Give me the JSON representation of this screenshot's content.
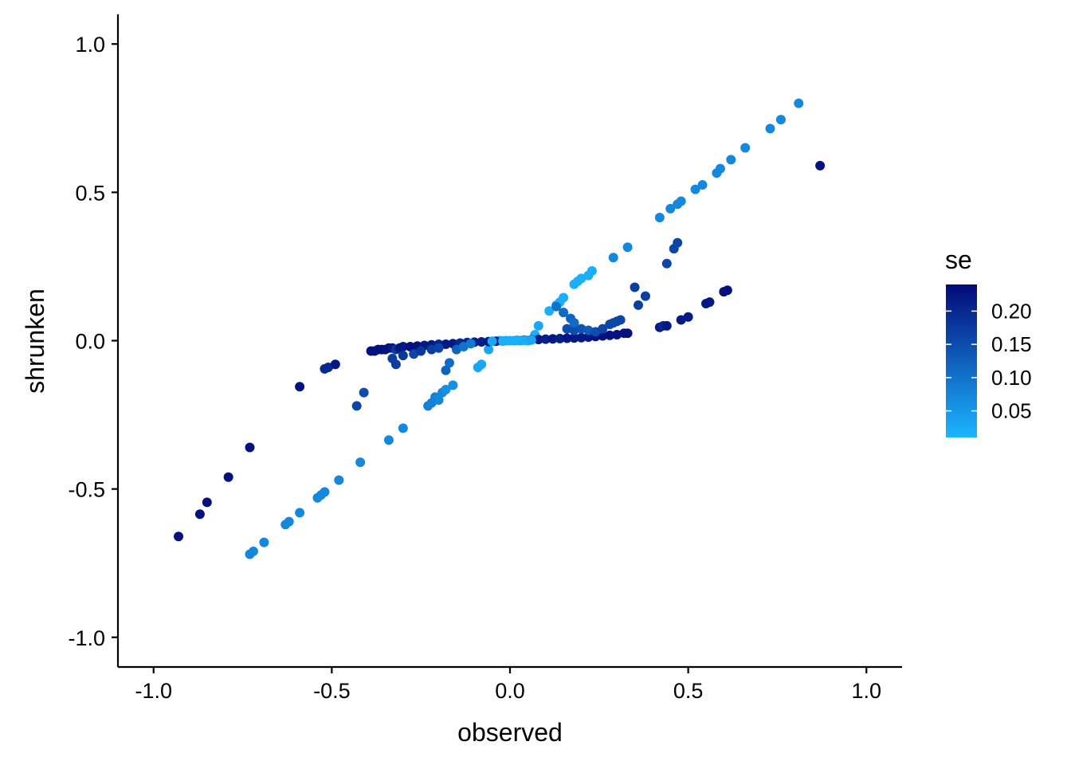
{
  "chart_data": {
    "type": "scatter",
    "title": "",
    "xlabel": "observed",
    "ylabel": "shrunken",
    "xlim": [
      -1.1,
      1.1
    ],
    "ylim": [
      -1.1,
      1.1
    ],
    "x_ticks": [
      -1.0,
      -0.5,
      0.0,
      0.5,
      1.0
    ],
    "y_ticks": [
      -1.0,
      -0.5,
      0.0,
      0.5,
      1.0
    ],
    "x_tick_labels": [
      "-1.0",
      "-0.5",
      "0.0",
      "0.5",
      "1.0"
    ],
    "y_tick_labels": [
      "-1.0",
      "-0.5",
      "0.0",
      "0.5",
      "1.0"
    ],
    "grid": false,
    "color_scale": {
      "variable": "se",
      "title": "se",
      "range": [
        0.01,
        0.24
      ],
      "low_color": "#1cb5ff",
      "high_color": "#030a78",
      "ticks": [
        0.05,
        0.1,
        0.15,
        0.2
      ],
      "tick_labels": [
        "0.05",
        "0.10",
        "0.15",
        "0.20"
      ],
      "placement": "right"
    },
    "series": [
      {
        "points": [
          {
            "x": -0.73,
            "y": -0.72,
            "se": 0.07
          },
          {
            "x": -0.72,
            "y": -0.71,
            "se": 0.07
          },
          {
            "x": -0.69,
            "y": -0.68,
            "se": 0.07
          },
          {
            "x": -0.63,
            "y": -0.62,
            "se": 0.07
          },
          {
            "x": -0.62,
            "y": -0.61,
            "se": 0.07
          },
          {
            "x": -0.59,
            "y": -0.58,
            "se": 0.07
          },
          {
            "x": -0.54,
            "y": -0.53,
            "se": 0.07
          },
          {
            "x": -0.53,
            "y": -0.52,
            "se": 0.07
          },
          {
            "x": -0.52,
            "y": -0.51,
            "se": 0.07
          },
          {
            "x": -0.48,
            "y": -0.47,
            "se": 0.07
          },
          {
            "x": -0.42,
            "y": -0.41,
            "se": 0.07
          },
          {
            "x": -0.34,
            "y": -0.335,
            "se": 0.07
          },
          {
            "x": -0.3,
            "y": -0.295,
            "se": 0.07
          },
          {
            "x": -0.23,
            "y": -0.22,
            "se": 0.08
          },
          {
            "x": -0.22,
            "y": -0.21,
            "se": 0.08
          },
          {
            "x": -0.21,
            "y": -0.19,
            "se": 0.08
          },
          {
            "x": -0.2,
            "y": -0.2,
            "se": 0.07
          },
          {
            "x": -0.19,
            "y": -0.175,
            "se": 0.07
          },
          {
            "x": -0.18,
            "y": -0.165,
            "se": 0.06
          },
          {
            "x": -0.16,
            "y": -0.15,
            "se": 0.06
          },
          {
            "x": -0.09,
            "y": -0.09,
            "se": 0.03
          },
          {
            "x": -0.08,
            "y": -0.08,
            "se": 0.03
          },
          {
            "x": -0.06,
            "y": -0.03,
            "se": 0.03
          },
          {
            "x": -0.03,
            "y": 0.0,
            "se": 0.02
          },
          {
            "x": -0.01,
            "y": 0.0,
            "se": 0.02
          },
          {
            "x": 0.01,
            "y": 0.0,
            "se": 0.02
          },
          {
            "x": 0.03,
            "y": 0.0,
            "se": 0.02
          },
          {
            "x": 0.05,
            "y": 0.0,
            "se": 0.02
          },
          {
            "x": 0.07,
            "y": 0.02,
            "se": 0.02
          },
          {
            "x": 0.08,
            "y": 0.05,
            "se": 0.03
          },
          {
            "x": 0.11,
            "y": 0.1,
            "se": 0.02
          },
          {
            "x": 0.13,
            "y": 0.12,
            "se": 0.02
          },
          {
            "x": 0.14,
            "y": 0.13,
            "se": 0.02
          },
          {
            "x": 0.15,
            "y": 0.145,
            "se": 0.02
          },
          {
            "x": 0.18,
            "y": 0.19,
            "se": 0.02
          },
          {
            "x": 0.19,
            "y": 0.2,
            "se": 0.02
          },
          {
            "x": 0.2,
            "y": 0.21,
            "se": 0.02
          },
          {
            "x": 0.22,
            "y": 0.22,
            "se": 0.02
          },
          {
            "x": 0.23,
            "y": 0.235,
            "se": 0.02
          },
          {
            "x": 0.29,
            "y": 0.28,
            "se": 0.07
          },
          {
            "x": 0.33,
            "y": 0.315,
            "se": 0.07
          },
          {
            "x": 0.42,
            "y": 0.415,
            "se": 0.07
          },
          {
            "x": 0.45,
            "y": 0.445,
            "se": 0.07
          },
          {
            "x": 0.47,
            "y": 0.46,
            "se": 0.07
          },
          {
            "x": 0.48,
            "y": 0.47,
            "se": 0.07
          },
          {
            "x": 0.52,
            "y": 0.51,
            "se": 0.07
          },
          {
            "x": 0.54,
            "y": 0.525,
            "se": 0.07
          },
          {
            "x": 0.58,
            "y": 0.565,
            "se": 0.07
          },
          {
            "x": 0.59,
            "y": 0.58,
            "se": 0.07
          },
          {
            "x": 0.62,
            "y": 0.61,
            "se": 0.07
          },
          {
            "x": 0.66,
            "y": 0.65,
            "se": 0.07
          },
          {
            "x": 0.73,
            "y": 0.715,
            "se": 0.07
          },
          {
            "x": 0.76,
            "y": 0.745,
            "se": 0.07
          },
          {
            "x": 0.81,
            "y": 0.8,
            "se": 0.07
          },
          {
            "x": 0.87,
            "y": 0.59,
            "se": 0.23
          },
          {
            "x": -0.93,
            "y": -0.66,
            "se": 0.23
          },
          {
            "x": -0.87,
            "y": -0.585,
            "se": 0.23
          },
          {
            "x": -0.85,
            "y": -0.545,
            "se": 0.23
          },
          {
            "x": -0.79,
            "y": -0.46,
            "se": 0.23
          },
          {
            "x": -0.73,
            "y": -0.36,
            "se": 0.23
          },
          {
            "x": -0.59,
            "y": -0.155,
            "se": 0.23
          },
          {
            "x": -0.52,
            "y": -0.095,
            "se": 0.2
          },
          {
            "x": -0.51,
            "y": -0.09,
            "se": 0.2
          },
          {
            "x": -0.49,
            "y": -0.08,
            "se": 0.22
          },
          {
            "x": -0.43,
            "y": -0.22,
            "se": 0.16
          },
          {
            "x": -0.41,
            "y": -0.175,
            "se": 0.15
          },
          {
            "x": -0.39,
            "y": -0.035,
            "se": 0.23
          },
          {
            "x": -0.38,
            "y": -0.035,
            "se": 0.23
          },
          {
            "x": -0.37,
            "y": -0.03,
            "se": 0.23
          },
          {
            "x": -0.36,
            "y": -0.03,
            "se": 0.23
          },
          {
            "x": -0.35,
            "y": -0.03,
            "se": 0.23
          },
          {
            "x": -0.34,
            "y": -0.025,
            "se": 0.23
          },
          {
            "x": -0.33,
            "y": -0.025,
            "se": 0.22
          },
          {
            "x": -0.32,
            "y": -0.03,
            "se": 0.18
          },
          {
            "x": -0.31,
            "y": -0.025,
            "se": 0.22
          },
          {
            "x": -0.3,
            "y": -0.02,
            "se": 0.22
          },
          {
            "x": -0.28,
            "y": -0.02,
            "se": 0.23
          },
          {
            "x": -0.26,
            "y": -0.018,
            "se": 0.23
          },
          {
            "x": -0.24,
            "y": -0.016,
            "se": 0.22
          },
          {
            "x": -0.22,
            "y": -0.014,
            "se": 0.22
          },
          {
            "x": -0.2,
            "y": -0.012,
            "se": 0.2
          },
          {
            "x": -0.18,
            "y": -0.012,
            "se": 0.22
          },
          {
            "x": -0.16,
            "y": -0.01,
            "se": 0.22
          },
          {
            "x": -0.14,
            "y": -0.008,
            "se": 0.2
          },
          {
            "x": -0.12,
            "y": -0.006,
            "se": 0.2
          },
          {
            "x": -0.1,
            "y": -0.005,
            "se": 0.21
          },
          {
            "x": -0.08,
            "y": -0.004,
            "se": 0.21
          },
          {
            "x": -0.06,
            "y": -0.003,
            "se": 0.22
          },
          {
            "x": -0.04,
            "y": -0.002,
            "se": 0.22
          },
          {
            "x": -0.02,
            "y": -0.001,
            "se": 0.22
          },
          {
            "x": -0.33,
            "y": -0.06,
            "se": 0.17
          },
          {
            "x": -0.32,
            "y": -0.08,
            "se": 0.17
          },
          {
            "x": -0.3,
            "y": -0.05,
            "se": 0.18
          },
          {
            "x": -0.27,
            "y": -0.045,
            "se": 0.16
          },
          {
            "x": -0.25,
            "y": -0.035,
            "se": 0.18
          },
          {
            "x": -0.22,
            "y": -0.03,
            "se": 0.17
          },
          {
            "x": -0.2,
            "y": -0.025,
            "se": 0.16
          },
          {
            "x": -0.18,
            "y": -0.1,
            "se": 0.12
          },
          {
            "x": -0.17,
            "y": -0.075,
            "se": 0.11
          },
          {
            "x": -0.15,
            "y": -0.03,
            "se": 0.12
          },
          {
            "x": -0.13,
            "y": -0.02,
            "se": 0.1
          },
          {
            "x": -0.11,
            "y": -0.01,
            "se": 0.09
          },
          {
            "x": 0.02,
            "y": 0.001,
            "se": 0.22
          },
          {
            "x": 0.04,
            "y": 0.002,
            "se": 0.22
          },
          {
            "x": 0.06,
            "y": 0.003,
            "se": 0.22
          },
          {
            "x": 0.08,
            "y": 0.004,
            "se": 0.22
          },
          {
            "x": 0.1,
            "y": 0.005,
            "se": 0.21
          },
          {
            "x": 0.12,
            "y": 0.006,
            "se": 0.22
          },
          {
            "x": 0.14,
            "y": 0.007,
            "se": 0.21
          },
          {
            "x": 0.16,
            "y": 0.008,
            "se": 0.22
          },
          {
            "x": 0.18,
            "y": 0.009,
            "se": 0.22
          },
          {
            "x": 0.2,
            "y": 0.01,
            "se": 0.22
          },
          {
            "x": 0.22,
            "y": 0.012,
            "se": 0.22
          },
          {
            "x": 0.24,
            "y": 0.014,
            "se": 0.23
          },
          {
            "x": 0.26,
            "y": 0.016,
            "se": 0.23
          },
          {
            "x": 0.28,
            "y": 0.018,
            "se": 0.23
          },
          {
            "x": 0.3,
            "y": 0.02,
            "se": 0.23
          },
          {
            "x": 0.32,
            "y": 0.025,
            "se": 0.23
          },
          {
            "x": 0.33,
            "y": 0.025,
            "se": 0.23
          },
          {
            "x": 0.16,
            "y": 0.04,
            "se": 0.15
          },
          {
            "x": 0.18,
            "y": 0.035,
            "se": 0.15
          },
          {
            "x": 0.2,
            "y": 0.04,
            "se": 0.14
          },
          {
            "x": 0.22,
            "y": 0.035,
            "se": 0.13
          },
          {
            "x": 0.24,
            "y": 0.03,
            "se": 0.15
          },
          {
            "x": 0.26,
            "y": 0.04,
            "se": 0.16
          },
          {
            "x": 0.28,
            "y": 0.055,
            "se": 0.16
          },
          {
            "x": 0.29,
            "y": 0.06,
            "se": 0.16
          },
          {
            "x": 0.3,
            "y": 0.065,
            "se": 0.16
          },
          {
            "x": 0.31,
            "y": 0.07,
            "se": 0.16
          },
          {
            "x": 0.13,
            "y": 0.115,
            "se": 0.1
          },
          {
            "x": 0.15,
            "y": 0.095,
            "se": 0.11
          },
          {
            "x": 0.17,
            "y": 0.075,
            "se": 0.12
          },
          {
            "x": 0.18,
            "y": 0.06,
            "se": 0.11
          },
          {
            "x": 0.35,
            "y": 0.18,
            "se": 0.17
          },
          {
            "x": 0.36,
            "y": 0.12,
            "se": 0.17
          },
          {
            "x": 0.38,
            "y": 0.15,
            "se": 0.17
          },
          {
            "x": 0.44,
            "y": 0.26,
            "se": 0.16
          },
          {
            "x": 0.46,
            "y": 0.31,
            "se": 0.16
          },
          {
            "x": 0.47,
            "y": 0.33,
            "se": 0.16
          },
          {
            "x": 0.42,
            "y": 0.045,
            "se": 0.22
          },
          {
            "x": 0.43,
            "y": 0.05,
            "se": 0.2
          },
          {
            "x": 0.44,
            "y": 0.05,
            "se": 0.22
          },
          {
            "x": 0.48,
            "y": 0.07,
            "se": 0.22
          },
          {
            "x": 0.5,
            "y": 0.08,
            "se": 0.22
          },
          {
            "x": 0.55,
            "y": 0.125,
            "se": 0.22
          },
          {
            "x": 0.56,
            "y": 0.13,
            "se": 0.22
          },
          {
            "x": 0.6,
            "y": 0.165,
            "se": 0.23
          },
          {
            "x": 0.61,
            "y": 0.17,
            "se": 0.23
          },
          {
            "x": -0.05,
            "y": -0.002,
            "se": 0.03
          },
          {
            "x": -0.02,
            "y": -0.001,
            "se": 0.02
          },
          {
            "x": 0.0,
            "y": 0.0,
            "se": 0.02
          },
          {
            "x": 0.02,
            "y": 0.001,
            "se": 0.02
          },
          {
            "x": 0.04,
            "y": 0.001,
            "se": 0.02
          },
          {
            "x": 0.06,
            "y": 0.002,
            "se": 0.03
          }
        ]
      }
    ]
  }
}
